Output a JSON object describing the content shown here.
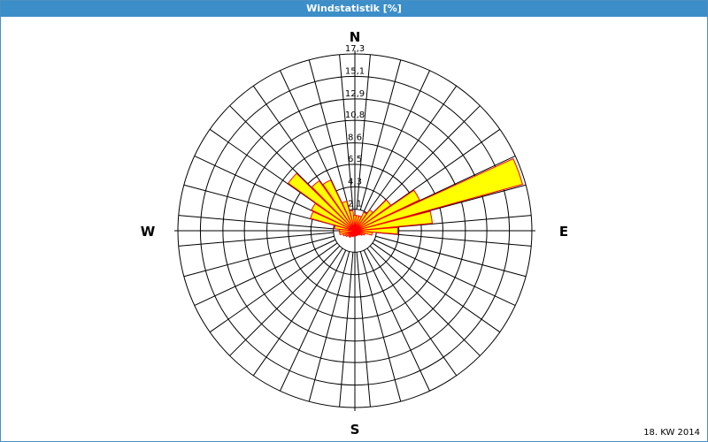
{
  "chart_data": {
    "type": "windrose",
    "title": "Windstatistik [%]",
    "footnote": "18. KW 2014",
    "directions": [
      "N",
      "E",
      "S",
      "W"
    ],
    "sector_angles": [
      0,
      10,
      20,
      30,
      40,
      50,
      60,
      70,
      80,
      90,
      100,
      110,
      120,
      130,
      140,
      150,
      160,
      170,
      180,
      190,
      200,
      210,
      220,
      230,
      240,
      250,
      260,
      270,
      280,
      290,
      300,
      310,
      320,
      330,
      340,
      350
    ],
    "values": [
      1.5,
      1.5,
      1.5,
      2,
      2.5,
      4.3,
      7,
      17,
      7.6,
      4.2,
      1.7,
      1,
      0.8,
      0.6,
      0.5,
      0.5,
      0.5,
      0.5,
      0.5,
      0.5,
      0.6,
      0.6,
      0.8,
      0.8,
      1,
      1.2,
      1.5,
      1.5,
      2,
      4.5,
      4.7,
      8,
      6,
      5.5,
      3,
      2
    ],
    "color": "#ffff00",
    "edge_color": "#ff0000",
    "rlim": [
      0,
      17.3
    ],
    "rticks": [
      {
        "value": 2.1,
        "label": "2,1"
      },
      {
        "value": 4.3,
        "label": "4,3"
      },
      {
        "value": 6.5,
        "label": "6,5"
      },
      {
        "value": 8.6,
        "label": "8,6"
      },
      {
        "value": 10.8,
        "label": "10,8"
      },
      {
        "value": 12.9,
        "label": "12,9"
      },
      {
        "value": 15.1,
        "label": "15,1"
      },
      {
        "value": 17.3,
        "label": "17,3"
      }
    ]
  }
}
